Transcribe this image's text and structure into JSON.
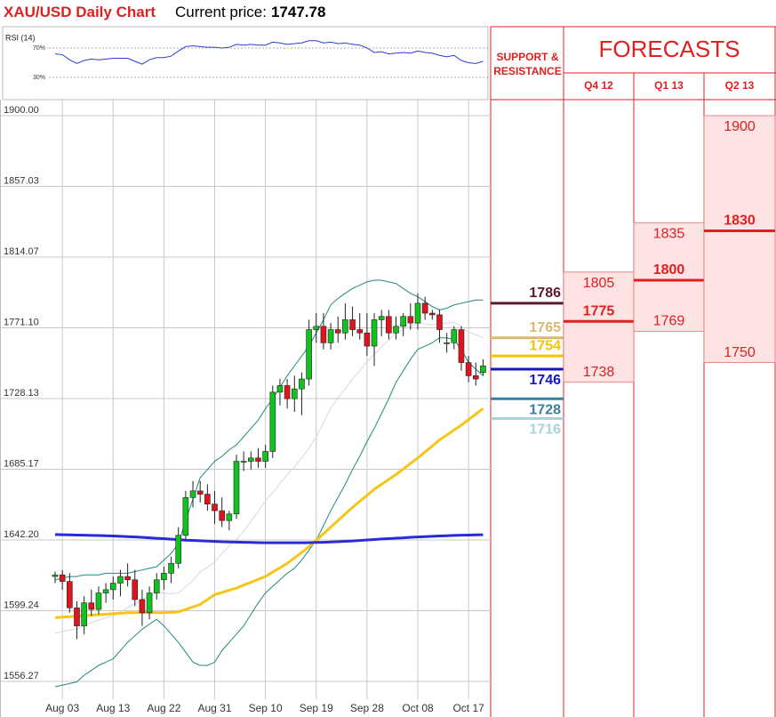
{
  "header": {
    "title": "XAU/USD Daily Chart",
    "price_label": "Current price:",
    "price": "1747.78"
  },
  "chart_data": [
    {
      "type": "candlestick",
      "categories": [
        null,
        "Aug 03",
        null,
        null,
        null,
        null,
        null,
        null,
        "Aug 13",
        null,
        null,
        null,
        null,
        null,
        null,
        "Aug 22",
        null,
        null,
        null,
        null,
        null,
        null,
        "Aug 31",
        null,
        null,
        null,
        null,
        null,
        null,
        "Sep 10",
        null,
        null,
        null,
        null,
        null,
        null,
        "Sep 19",
        null,
        null,
        null,
        null,
        null,
        null,
        "Sep 28",
        null,
        null,
        null,
        null,
        null,
        null,
        "Oct 08",
        null,
        null,
        null,
        null,
        null,
        null,
        "Oct 17",
        null,
        null
      ],
      "open": [
        1620,
        1621,
        1617,
        1601,
        1590,
        1604,
        1600,
        1610,
        1612,
        1616,
        1620,
        1618,
        1606,
        1598,
        1610,
        1618,
        1622,
        1628,
        1645,
        1668,
        1672,
        1670,
        1664,
        1660,
        1654,
        1658,
        1690,
        1690,
        1692,
        1690,
        1696,
        1732,
        1736,
        1728,
        1734,
        1740,
        1770,
        1772,
        1762,
        1770,
        1768,
        1776,
        1770,
        1768,
        1760,
        1776,
        1778,
        1768,
        1772,
        1778,
        1774,
        1786,
        1780,
        1779,
        1762,
        1762,
        1770,
        1750,
        1742,
        1744
      ],
      "high": [
        1623,
        1624,
        1622,
        1605,
        1608,
        1612,
        1614,
        1616,
        1620,
        1624,
        1628,
        1624,
        1612,
        1614,
        1622,
        1626,
        1632,
        1650,
        1672,
        1678,
        1678,
        1676,
        1672,
        1668,
        1660,
        1694,
        1696,
        1696,
        1698,
        1700,
        1736,
        1740,
        1740,
        1742,
        1744,
        1776,
        1780,
        1780,
        1774,
        1778,
        1786,
        1784,
        1780,
        1780,
        1780,
        1782,
        1782,
        1778,
        1780,
        1786,
        1792,
        1790,
        1782,
        1782,
        1768,
        1772,
        1772,
        1754,
        1750,
        1752
      ],
      "low": [
        1616,
        1612,
        1598,
        1582,
        1585,
        1596,
        1597,
        1604,
        1606,
        1608,
        1614,
        1602,
        1590,
        1594,
        1606,
        1612,
        1616,
        1625,
        1642,
        1662,
        1665,
        1660,
        1652,
        1650,
        1648,
        1655,
        1684,
        1685,
        1686,
        1686,
        1692,
        1724,
        1722,
        1720,
        1718,
        1736,
        1762,
        1758,
        1758,
        1762,
        1764,
        1766,
        1764,
        1754,
        1748,
        1766,
        1764,
        1764,
        1766,
        1770,
        1770,
        1776,
        1776,
        1762,
        1756,
        1758,
        1745,
        1738,
        1736,
        1742
      ],
      "close": [
        1621,
        1617,
        1601,
        1590,
        1604,
        1600,
        1610,
        1612,
        1616,
        1620,
        1618,
        1606,
        1598,
        1610,
        1618,
        1622,
        1628,
        1645,
        1668,
        1672,
        1670,
        1664,
        1660,
        1654,
        1658,
        1690,
        1690,
        1692,
        1690,
        1696,
        1732,
        1736,
        1728,
        1734,
        1740,
        1770,
        1772,
        1762,
        1770,
        1768,
        1776,
        1770,
        1768,
        1760,
        1776,
        1778,
        1768,
        1772,
        1778,
        1774,
        1786,
        1780,
        1779,
        1770,
        1762,
        1770,
        1750,
        1742,
        1740,
        1748
      ],
      "up_color": "#12c21e",
      "down_color": "#e0141e",
      "overlays": [
        {
          "color": "#d8d8d8",
          "values": [
            1585.5,
            1586.5,
            1587.5,
            1588,
            1590.5,
            1592,
            1593.5,
            1595,
            1596,
            1598.5,
            1601,
            1603.5,
            1606,
            1608,
            1610,
            1610,
            1609.5,
            1610,
            1614,
            1617.5,
            1623,
            1625.5,
            1629,
            1634,
            1638.5,
            1642.5,
            1647.5,
            1653.5,
            1659.5,
            1666,
            1671,
            1676.5,
            1682,
            1686.5,
            1692,
            1698,
            1705,
            1713.5,
            1722.5,
            1728.5,
            1734,
            1740,
            1745,
            1750.5,
            1755,
            1759.5,
            1763.5,
            1768,
            1770,
            1772,
            1774,
            1773.5,
            1773,
            1773.5,
            1774,
            1774.5,
            1772,
            1768.5,
            1767,
            1765
          ]
        },
        {
          "color": "#1f8a80",
          "values": [
            1618,
            1619,
            1620,
            1620,
            1621,
            1621,
            1621,
            1622,
            1622,
            1622,
            1622,
            1623,
            1624,
            1625,
            1626,
            1630,
            1634,
            1640,
            1654,
            1667,
            1680,
            1685,
            1690,
            1693,
            1697,
            1700,
            1705,
            1710,
            1715,
            1722,
            1728,
            1735,
            1742,
            1748,
            1754,
            1760,
            1768,
            1776,
            1785,
            1789,
            1792,
            1795,
            1797,
            1799,
            1800,
            1800,
            1799,
            1798,
            1795,
            1792,
            1790,
            1787,
            1784,
            1782,
            1783,
            1785,
            1786,
            1787,
            1788,
            1788
          ]
        },
        {
          "color": "#1f8a80",
          "values": [
            1553,
            1554,
            1555,
            1556,
            1560,
            1563,
            1566,
            1568,
            1570,
            1575,
            1580,
            1584,
            1588,
            1591,
            1594,
            1590,
            1585,
            1580,
            1574,
            1568,
            1566,
            1566,
            1568,
            1575,
            1580,
            1585,
            1590,
            1597,
            1604,
            1610,
            1614,
            1618,
            1622,
            1625,
            1630,
            1636,
            1642,
            1651,
            1660,
            1668,
            1676,
            1685,
            1693,
            1702,
            1710,
            1719,
            1728,
            1738,
            1745,
            1752,
            1758,
            1760,
            1762,
            1765,
            1765,
            1764,
            1758,
            1750,
            1746,
            1742
          ]
        },
        {
          "color": "#f5c518",
          "width": 3,
          "values": [
            1595,
            1595.3,
            1595.6,
            1595.9,
            1596.2,
            1596.5,
            1596.8,
            1597.1,
            1597.4,
            1597.7,
            1598,
            1598,
            1598,
            1598,
            1598,
            1598,
            1598.2,
            1598.5,
            1600,
            1601.5,
            1603,
            1606,
            1609,
            1610.3,
            1611.7,
            1613,
            1614.8,
            1616.5,
            1618.3,
            1620,
            1622.7,
            1625.3,
            1628,
            1631.3,
            1634.7,
            1638,
            1642,
            1646,
            1650,
            1654,
            1658,
            1662,
            1665.7,
            1669.3,
            1673,
            1676,
            1679,
            1682,
            1685.3,
            1688.7,
            1692,
            1695.7,
            1699.3,
            1703,
            1706,
            1709,
            1712,
            1715.3,
            1718.7,
            1722
          ]
        },
        {
          "color": "#2a2ad8",
          "width": 3,
          "values": [
            1645.5,
            1645.4,
            1645.3,
            1645.2,
            1645.1,
            1645,
            1644.9,
            1644.8,
            1644.6,
            1644.4,
            1644.2,
            1644,
            1643.8,
            1643.5,
            1643.2,
            1643,
            1642.7,
            1642.4,
            1642.1,
            1641.9,
            1641.7,
            1641.5,
            1641.3,
            1641.1,
            1641,
            1640.9,
            1640.8,
            1640.7,
            1640.6,
            1640.5,
            1640.5,
            1640.5,
            1640.5,
            1640.5,
            1640.5,
            1640.6,
            1640.7,
            1640.8,
            1641,
            1641.2,
            1641.4,
            1641.6,
            1641.9,
            1642.2,
            1642.5,
            1642.8,
            1643,
            1643.3,
            1643.5,
            1643.8,
            1644,
            1644.2,
            1644.4,
            1644.6,
            1644.8,
            1645,
            1645.1,
            1645.2,
            1645.3,
            1645.4
          ]
        }
      ],
      "ylim": [
        1534.65,
        1909.73
      ],
      "yticks": [
        {
          "value": 1900,
          "label": "1900.00"
        },
        1857.03,
        1814.07,
        {
          "value": 1771.1,
          "label": "1771.10"
        },
        1728.13,
        1685.17,
        {
          "value": 1642.2,
          "label": "1642.20"
        },
        1599.24,
        1556.27
      ],
      "grid": true
    },
    {
      "type": "line",
      "title": "RSI (14)",
      "color": "#2a3fd0",
      "values": [
        62,
        61,
        54,
        49,
        53,
        55,
        54,
        55,
        56,
        56,
        56,
        52,
        48,
        54,
        57,
        57,
        59,
        66,
        72,
        73,
        72,
        71,
        71,
        70,
        71,
        75,
        74,
        75,
        74,
        74,
        78,
        77,
        75,
        76,
        77,
        80,
        80,
        77,
        78,
        76,
        77,
        75,
        74,
        70,
        64,
        65,
        62,
        63,
        64,
        63,
        66,
        64,
        63,
        60,
        58,
        60,
        53,
        50,
        49,
        52
      ],
      "ylim": [
        0,
        100
      ],
      "yticks": [
        {
          "value": 70,
          "label": "70%"
        },
        {
          "value": 30,
          "label": "30%"
        }
      ],
      "grid": true
    }
  ],
  "support_resistance": {
    "title": "SUPPORT & RESISTANCE",
    "levels": [
      {
        "value": 1786,
        "color": "#5c1a30"
      },
      {
        "value": 1765,
        "color": "#d9b96e"
      },
      {
        "value": 1754,
        "color": "#f2c500"
      },
      {
        "value": 1746,
        "color": "#1515c8"
      },
      {
        "value": 1728,
        "color": "#3b7f9c"
      },
      {
        "value": 1716,
        "color": "#a9d3dc"
      }
    ]
  },
  "forecasts": {
    "title": "FORECASTS",
    "color": "#e02020",
    "columns": [
      {
        "label": "Q4 12",
        "high": 1805,
        "target": 1775,
        "low": 1738
      },
      {
        "label": "Q1 13",
        "high": 1835,
        "target": 1800,
        "low": 1769
      },
      {
        "label": "Q2 13",
        "high": 1900,
        "target": 1830,
        "low": 1750
      }
    ]
  }
}
